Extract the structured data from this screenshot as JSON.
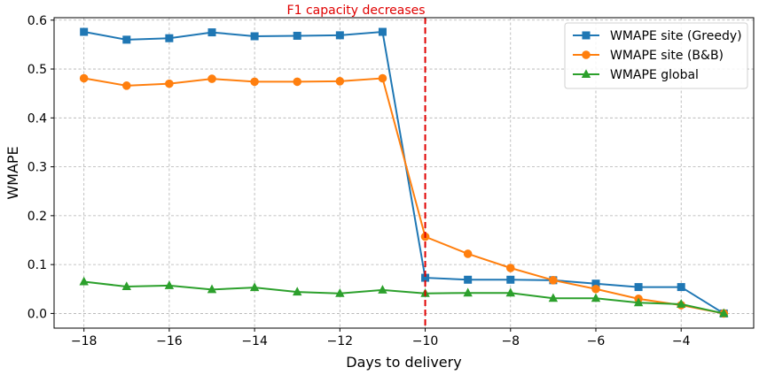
{
  "chart_data": {
    "type": "line",
    "title": "",
    "xlabel": "Days to delivery",
    "ylabel": "WMAPE",
    "xlim": [
      -18.7,
      -2.3
    ],
    "ylim": [
      -0.03,
      0.605
    ],
    "xticks": [
      -18,
      -16,
      -14,
      -12,
      -10,
      -8,
      -6,
      -4
    ],
    "xtick_labels": [
      "−18",
      "−16",
      "−14",
      "−12",
      "−10",
      "−8",
      "−6",
      "−4"
    ],
    "yticks": [
      0.0,
      0.1,
      0.2,
      0.3,
      0.4,
      0.5,
      0.6
    ],
    "ytick_labels": [
      "0.0",
      "0.1",
      "0.2",
      "0.3",
      "0.4",
      "0.5",
      "0.6"
    ],
    "grid": true,
    "legend_position": "top-right",
    "x": [
      -18,
      -17,
      -16,
      -15,
      -14,
      -13,
      -12,
      -11,
      -10,
      -9,
      -8,
      -7,
      -6,
      -5,
      -4,
      -3
    ],
    "series": [
      {
        "name": "WMAPE site (Greedy)",
        "color": "#1f77b4",
        "marker": "square",
        "values": [
          0.576,
          0.56,
          0.563,
          0.575,
          0.567,
          0.568,
          0.569,
          0.576,
          0.073,
          0.069,
          0.069,
          0.068,
          0.061,
          0.054,
          0.054,
          0.0
        ]
      },
      {
        "name": "WMAPE site (B&B)",
        "color": "#ff7f0e",
        "marker": "circle",
        "values": [
          0.481,
          0.466,
          0.47,
          0.48,
          0.474,
          0.474,
          0.475,
          0.481,
          0.157,
          0.122,
          0.093,
          0.068,
          0.05,
          0.03,
          0.017,
          0.0
        ]
      },
      {
        "name": "WMAPE global",
        "color": "#2ca02c",
        "marker": "triangle",
        "values": [
          0.065,
          0.055,
          0.057,
          0.049,
          0.053,
          0.044,
          0.041,
          0.048,
          0.041,
          0.042,
          0.042,
          0.031,
          0.031,
          0.022,
          0.019,
          0.0
        ]
      }
    ],
    "annotations": [
      {
        "type": "vline",
        "x": -10,
        "color": "#e00000",
        "style": "dashed",
        "label": "F1 capacity decreases"
      }
    ]
  }
}
